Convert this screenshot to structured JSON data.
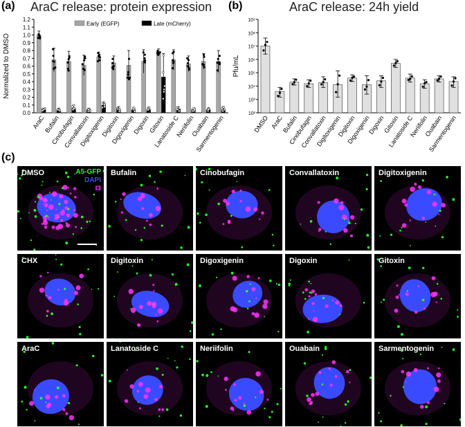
{
  "panels": {
    "a": {
      "letter": "(a)",
      "title": "AraC release: protein expression"
    },
    "b": {
      "letter": "(b)",
      "title": "AraC release: 24h yield"
    },
    "c": {
      "letter": "(c)"
    }
  },
  "chart_data": [
    {
      "type": "bar",
      "title": "AraC release: protein expression",
      "ylabel": "Normalized to DMSO",
      "xlabel": "",
      "ylim": [
        0,
        1.2
      ],
      "yticks": [
        "0.0",
        "0.1",
        "0.2",
        "0.3",
        "0.4",
        "0.5",
        "0.6",
        "0.7",
        "0.8",
        "0.9",
        "1.0",
        "1.1",
        "1.2"
      ],
      "legend_position": "top-right",
      "grid": false,
      "categories": [
        "AraC",
        "Bufalin",
        "Cinobufagin",
        "Convallatoxin",
        "Digitoxigenin",
        "Digitoxin",
        "Digoxigenin",
        "Digoxin",
        "Gitoxin",
        "Lanatoside C",
        "Neriifolin",
        "Ouabain",
        "Sarmentogenin"
      ],
      "series": [
        {
          "name": "Early (EGFP)",
          "color": "#a6a6a6",
          "values": [
            1.0,
            0.68,
            0.66,
            0.61,
            0.72,
            0.64,
            0.61,
            0.66,
            0.78,
            0.68,
            0.63,
            0.66,
            0.66
          ],
          "errors": [
            0.05,
            0.15,
            0.13,
            0.13,
            0.06,
            0.09,
            0.19,
            0.15,
            0.04,
            0.13,
            0.1,
            0.1,
            0.14
          ]
        },
        {
          "name": "Late (mCherry)",
          "color": "#000000",
          "values": [
            0.04,
            0.04,
            0.06,
            0.04,
            0.1,
            0.05,
            0.04,
            0.04,
            0.46,
            0.05,
            0.04,
            0.04,
            0.05
          ],
          "errors": [
            0.02,
            0.02,
            0.04,
            0.02,
            0.04,
            0.03,
            0.03,
            0.03,
            0.3,
            0.03,
            0.02,
            0.02,
            0.03
          ]
        }
      ]
    },
    {
      "type": "bar",
      "title": "AraC release: 24h yield",
      "ylabel": "Pfu/mL",
      "xlabel": "",
      "yscale": "log",
      "ylim": [
        100,
        1000000000
      ],
      "yticks": [
        "10²",
        "10³",
        "10⁴",
        "10⁵",
        "10⁶",
        "10⁷",
        "10⁸",
        "10⁹"
      ],
      "grid": false,
      "categories": [
        "DMSO",
        "AraC",
        "Bufalin",
        "Cinobufagin",
        "Convallatoxin",
        "Digitoxigenin",
        "Digitoxin",
        "Digoxigenin",
        "Digoxin",
        "Gitoxin",
        "Lanatoside C",
        "Neriifolin",
        "Ouabain",
        "Sarmentogenin"
      ],
      "series": [
        {
          "name": "",
          "color": "#e0e0e0",
          "values": [
            10000000,
            4000,
            20000,
            15000,
            18000,
            13000,
            40000,
            13000,
            25000,
            500000,
            40000,
            15000,
            35000,
            22000
          ],
          "err_low": [
            2500000,
            1500,
            12000,
            8000,
            8000,
            1500,
            22000,
            2500,
            8000,
            250000,
            20000,
            7000,
            20000,
            8000
          ],
          "err_high": [
            40000000,
            8000,
            35000,
            30000,
            50000,
            140000,
            70000,
            60000,
            60000,
            1000000,
            80000,
            30000,
            60000,
            50000
          ]
        }
      ]
    }
  ],
  "images": {
    "channels": [
      {
        "label": "A5-GFP",
        "color": "#22ff22"
      },
      {
        "label": "DAPI",
        "color": "#3a4bff"
      },
      {
        "label": "I3",
        "color": "#ff33ff"
      }
    ],
    "tiles": [
      {
        "label": "DMSO"
      },
      {
        "label": "Bufalin"
      },
      {
        "label": "Cinobufagin"
      },
      {
        "label": "Convallatoxin"
      },
      {
        "label": "Digitoxigenin"
      },
      {
        "label": "CHX"
      },
      {
        "label": "Digitoxin"
      },
      {
        "label": "Digoxigenin"
      },
      {
        "label": "Digoxin"
      },
      {
        "label": "Gitoxin"
      },
      {
        "label": "AraC"
      },
      {
        "label": "Lanatoside C"
      },
      {
        "label": "Neriifolin"
      },
      {
        "label": "Ouabain"
      },
      {
        "label": "Sarmentogenin"
      }
    ]
  }
}
